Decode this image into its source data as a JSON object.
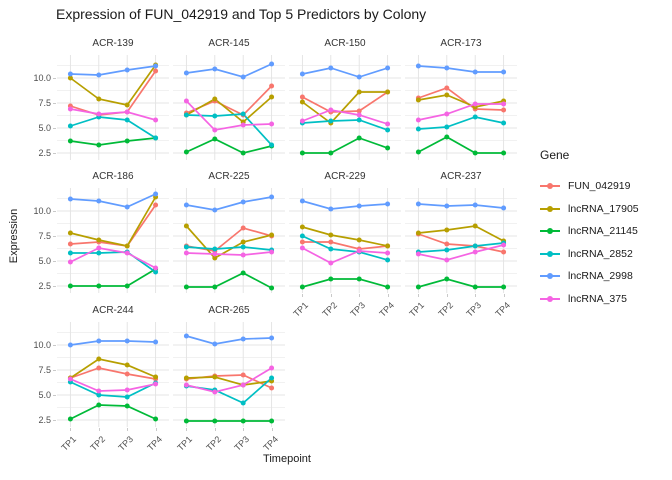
{
  "title": "Expression of FUN_042919 and Top 5 Predictors by Colony",
  "axes": {
    "x_title": "Timepoint",
    "y_title": "Expression",
    "y_ticks": [
      "10.0",
      "7.5",
      "5.0",
      "2.5"
    ],
    "y_tick_values": [
      10.0,
      7.5,
      5.0,
      2.5
    ],
    "x_ticks": [
      "TP1",
      "TP2",
      "TP3",
      "TP4"
    ]
  },
  "legend": {
    "title": "Gene",
    "items": [
      {
        "label": "FUN_042919",
        "color": "#F8766D"
      },
      {
        "label": "lncRNA_17905",
        "color": "#B79F00"
      },
      {
        "label": "lncRNA_21145",
        "color": "#00BA38"
      },
      {
        "label": "lncRNA_2852",
        "color": "#00BFC4"
      },
      {
        "label": "lncRNA_2998",
        "color": "#619CFF"
      },
      {
        "label": "lncRNA_375",
        "color": "#F564E3"
      }
    ]
  },
  "chart_data": {
    "type": "line",
    "x": [
      "TP1",
      "TP2",
      "TP3",
      "TP4"
    ],
    "ylim": [
      1.8,
      12.3
    ],
    "y_major_gridlines": [
      2.5,
      5.0,
      7.5,
      10.0
    ],
    "y_minor_gridlines": [
      3.75,
      6.25,
      8.75,
      11.25
    ],
    "grid": true,
    "legend_position": "right",
    "facets": [
      {
        "name": "ACR-139",
        "series": [
          {
            "gene": "FUN_042919",
            "values": [
              7.2,
              6.3,
              6.6,
              10.7
            ]
          },
          {
            "gene": "lncRNA_17905",
            "values": [
              10.0,
              7.9,
              7.3,
              11.3
            ]
          },
          {
            "gene": "lncRNA_21145",
            "values": [
              3.7,
              3.3,
              3.7,
              4.0
            ]
          },
          {
            "gene": "lncRNA_2852",
            "values": [
              5.2,
              6.1,
              5.8,
              4.0
            ]
          },
          {
            "gene": "lncRNA_2998",
            "values": [
              10.4,
              10.3,
              10.8,
              11.2
            ]
          },
          {
            "gene": "lncRNA_375",
            "values": [
              6.9,
              6.4,
              6.6,
              5.8
            ]
          }
        ]
      },
      {
        "name": "ACR-145",
        "series": [
          {
            "gene": "FUN_042919",
            "values": [
              6.5,
              7.7,
              6.3,
              9.2
            ]
          },
          {
            "gene": "lncRNA_17905",
            "values": [
              6.3,
              7.9,
              5.6,
              8.1
            ]
          },
          {
            "gene": "lncRNA_21145",
            "values": [
              2.6,
              3.9,
              2.5,
              3.2
            ]
          },
          {
            "gene": "lncRNA_2852",
            "values": [
              6.3,
              6.2,
              6.4,
              3.3
            ]
          },
          {
            "gene": "lncRNA_2998",
            "values": [
              10.5,
              10.9,
              10.1,
              11.4
            ]
          },
          {
            "gene": "lncRNA_375",
            "values": [
              7.7,
              4.8,
              5.3,
              5.4
            ]
          }
        ]
      },
      {
        "name": "ACR-150",
        "series": [
          {
            "gene": "FUN_042919",
            "values": [
              8.1,
              6.6,
              6.7,
              8.6
            ]
          },
          {
            "gene": "lncRNA_17905",
            "values": [
              7.6,
              5.5,
              8.6,
              8.6
            ]
          },
          {
            "gene": "lncRNA_21145",
            "values": [
              2.5,
              2.5,
              4.0,
              3.0
            ]
          },
          {
            "gene": "lncRNA_2852",
            "values": [
              5.5,
              5.7,
              5.8,
              4.8
            ]
          },
          {
            "gene": "lncRNA_2998",
            "values": [
              10.4,
              11.0,
              10.1,
              11.0
            ]
          },
          {
            "gene": "lncRNA_375",
            "values": [
              5.7,
              6.8,
              6.3,
              5.4
            ]
          }
        ]
      },
      {
        "name": "ACR-173",
        "series": [
          {
            "gene": "FUN_042919",
            "values": [
              8.0,
              9.0,
              6.9,
              6.8
            ]
          },
          {
            "gene": "lncRNA_17905",
            "values": [
              7.8,
              8.3,
              7.1,
              7.7
            ]
          },
          {
            "gene": "lncRNA_21145",
            "values": [
              2.6,
              4.1,
              2.5,
              2.5
            ]
          },
          {
            "gene": "lncRNA_2852",
            "values": [
              4.9,
              5.1,
              6.1,
              5.5
            ]
          },
          {
            "gene": "lncRNA_2998",
            "values": [
              11.2,
              11.0,
              10.6,
              10.6
            ]
          },
          {
            "gene": "lncRNA_375",
            "values": [
              5.8,
              6.4,
              7.4,
              7.4
            ]
          }
        ]
      },
      {
        "name": "ACR-186",
        "series": [
          {
            "gene": "FUN_042919",
            "values": [
              6.7,
              6.9,
              6.5,
              10.6
            ]
          },
          {
            "gene": "lncRNA_17905",
            "values": [
              7.8,
              7.1,
              6.5,
              11.4
            ]
          },
          {
            "gene": "lncRNA_21145",
            "values": [
              2.5,
              2.5,
              2.5,
              4.2
            ]
          },
          {
            "gene": "lncRNA_2852",
            "values": [
              5.8,
              5.8,
              5.9,
              3.9
            ]
          },
          {
            "gene": "lncRNA_2998",
            "values": [
              11.2,
              11.0,
              10.4,
              11.7
            ]
          },
          {
            "gene": "lncRNA_375",
            "values": [
              4.9,
              6.3,
              5.8,
              4.3
            ]
          }
        ]
      },
      {
        "name": "ACR-225",
        "series": [
          {
            "gene": "FUN_042919",
            "values": [
              6.5,
              6.0,
              8.3,
              7.5
            ]
          },
          {
            "gene": "lncRNA_17905",
            "values": [
              8.5,
              5.3,
              6.9,
              7.6
            ]
          },
          {
            "gene": "lncRNA_21145",
            "values": [
              2.4,
              2.4,
              3.8,
              2.3
            ]
          },
          {
            "gene": "lncRNA_2852",
            "values": [
              6.4,
              6.2,
              6.4,
              6.1
            ]
          },
          {
            "gene": "lncRNA_2998",
            "values": [
              10.6,
              10.1,
              10.9,
              11.4
            ]
          },
          {
            "gene": "lncRNA_375",
            "values": [
              5.8,
              5.7,
              5.6,
              5.9
            ]
          }
        ]
      },
      {
        "name": "ACR-229",
        "series": [
          {
            "gene": "FUN_042919",
            "values": [
              6.9,
              6.9,
              6.2,
              6.5
            ]
          },
          {
            "gene": "lncRNA_17905",
            "values": [
              8.4,
              7.6,
              7.1,
              6.5
            ]
          },
          {
            "gene": "lncRNA_21145",
            "values": [
              2.4,
              3.2,
              3.2,
              2.4
            ]
          },
          {
            "gene": "lncRNA_2852",
            "values": [
              7.5,
              6.2,
              5.9,
              5.1
            ]
          },
          {
            "gene": "lncRNA_2998",
            "values": [
              11.0,
              10.2,
              10.5,
              10.7
            ]
          },
          {
            "gene": "lncRNA_375",
            "values": [
              6.3,
              4.8,
              6.0,
              5.8
            ]
          }
        ]
      },
      {
        "name": "ACR-237",
        "series": [
          {
            "gene": "FUN_042919",
            "values": [
              7.7,
              6.7,
              6.5,
              5.9
            ]
          },
          {
            "gene": "lncRNA_17905",
            "values": [
              7.8,
              8.1,
              8.5,
              7.0
            ]
          },
          {
            "gene": "lncRNA_21145",
            "values": [
              2.4,
              3.2,
              2.4,
              2.4
            ]
          },
          {
            "gene": "lncRNA_2852",
            "values": [
              5.9,
              6.1,
              6.5,
              6.8
            ]
          },
          {
            "gene": "lncRNA_2998",
            "values": [
              10.7,
              10.5,
              10.6,
              10.3
            ]
          },
          {
            "gene": "lncRNA_375",
            "values": [
              5.7,
              5.1,
              5.9,
              6.6
            ]
          }
        ]
      },
      {
        "name": "ACR-244",
        "series": [
          {
            "gene": "FUN_042919",
            "values": [
              6.7,
              7.7,
              7.1,
              6.6
            ]
          },
          {
            "gene": "lncRNA_17905",
            "values": [
              6.7,
              8.6,
              8.0,
              6.8
            ]
          },
          {
            "gene": "lncRNA_21145",
            "values": [
              2.6,
              4.0,
              3.9,
              2.6
            ]
          },
          {
            "gene": "lncRNA_2852",
            "values": [
              6.3,
              5.0,
              4.8,
              6.2
            ]
          },
          {
            "gene": "lncRNA_2998",
            "values": [
              10.0,
              10.4,
              10.4,
              10.3
            ]
          },
          {
            "gene": "lncRNA_375",
            "values": [
              6.6,
              5.4,
              5.5,
              6.1
            ]
          }
        ]
      },
      {
        "name": "ACR-265",
        "series": [
          {
            "gene": "FUN_042919",
            "values": [
              6.6,
              6.9,
              7.0,
              5.7
            ]
          },
          {
            "gene": "lncRNA_17905",
            "values": [
              6.7,
              6.8,
              6.0,
              6.4
            ]
          },
          {
            "gene": "lncRNA_21145",
            "values": [
              2.4,
              2.4,
              2.4,
              2.4
            ]
          },
          {
            "gene": "lncRNA_2852",
            "values": [
              5.9,
              5.5,
              4.2,
              6.7
            ]
          },
          {
            "gene": "lncRNA_2998",
            "values": [
              10.9,
              10.1,
              10.6,
              10.7
            ]
          },
          {
            "gene": "lncRNA_375",
            "values": [
              6.0,
              5.3,
              6.0,
              7.7
            ]
          }
        ]
      }
    ]
  }
}
